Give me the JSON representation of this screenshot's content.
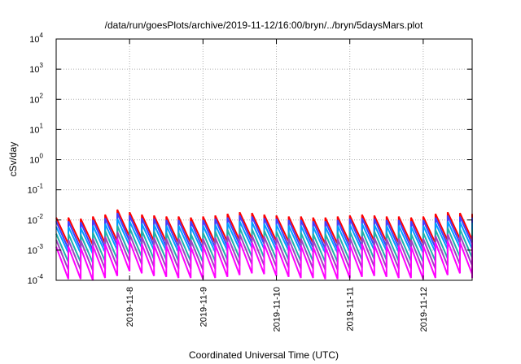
{
  "chart_data": {
    "type": "line",
    "title": "/data/run/goesPlots/archive/2019-11-12/16:00/bryn/../bryn/5daysMars.plot",
    "xlabel": "Coordinated Universal Time (UTC)",
    "ylabel": "cSv/day",
    "yscale": "log",
    "ylim": [
      0.0001,
      10000
    ],
    "y_ticks": [
      {
        "base": "10",
        "exp": "-4",
        "value": 0.0001
      },
      {
        "base": "10",
        "exp": "-3",
        "value": 0.001
      },
      {
        "base": "10",
        "exp": "-2",
        "value": 0.01
      },
      {
        "base": "10",
        "exp": "-1",
        "value": 0.1
      },
      {
        "base": "10",
        "exp": "0",
        "value": 1
      },
      {
        "base": "10",
        "exp": "1",
        "value": 10
      },
      {
        "base": "10",
        "exp": "2",
        "value": 100
      },
      {
        "base": "10",
        "exp": "3",
        "value": 1000
      },
      {
        "base": "10",
        "exp": "4",
        "value": 10000
      }
    ],
    "xlim": [
      "2019-11-07 00:00",
      "2019-11-12 16:00"
    ],
    "x_ticks": [
      {
        "label": "2019-11-8",
        "date": "2019-11-08"
      },
      {
        "label": "2019-11-9",
        "date": "2019-11-09"
      },
      {
        "label": "2019-11-10",
        "date": "2019-11-10"
      },
      {
        "label": "2019-11-11",
        "date": "2019-11-11"
      },
      {
        "label": "2019-11-12",
        "date": "2019-11-12"
      }
    ],
    "grid": true,
    "sawtooth_period_hours": 4,
    "series": [
      {
        "color": "#ff0000",
        "peak_values": [
          0.012,
          0.012,
          0.011,
          0.013,
          0.015,
          0.022,
          0.018,
          0.015,
          0.014,
          0.013,
          0.013,
          0.012,
          0.013,
          0.014,
          0.016,
          0.018,
          0.017,
          0.015,
          0.014,
          0.013,
          0.013,
          0.012,
          0.012,
          0.013,
          0.014,
          0.015,
          0.014,
          0.013,
          0.013,
          0.012,
          0.013,
          0.016,
          0.018,
          0.017,
          0.015,
          0.014,
          0.013,
          0.013,
          0.014,
          0.016,
          0.016,
          0.015,
          0.014,
          0.013
        ],
        "trough_values": [
          0.0016,
          0.0016,
          0.0015,
          0.0017,
          0.002,
          0.0028,
          0.0024,
          0.002,
          0.0019,
          0.0017,
          0.0017,
          0.0016,
          0.0017,
          0.0019,
          0.0021,
          0.0024,
          0.0022,
          0.002,
          0.0019,
          0.0017,
          0.0017,
          0.0016,
          0.0016,
          0.0017,
          0.0019,
          0.002,
          0.0019,
          0.0017,
          0.0017,
          0.0016,
          0.0017,
          0.0021,
          0.0024,
          0.0022,
          0.002,
          0.0019,
          0.0017,
          0.0017,
          0.0019,
          0.0021,
          0.0021,
          0.002,
          0.0019,
          0.0017
        ]
      },
      {
        "color": "#4040ff",
        "peak_values": [
          0.009,
          0.009,
          0.0085,
          0.01,
          0.0115,
          0.017,
          0.014,
          0.0115,
          0.011,
          0.01,
          0.01,
          0.009,
          0.01,
          0.011,
          0.012,
          0.014,
          0.013,
          0.0115,
          0.011,
          0.01,
          0.01,
          0.009,
          0.009,
          0.01,
          0.011,
          0.0115,
          0.011,
          0.01,
          0.01,
          0.009,
          0.01,
          0.012,
          0.014,
          0.013,
          0.0115,
          0.011,
          0.01,
          0.01,
          0.011,
          0.012,
          0.012,
          0.0115,
          0.011,
          0.01
        ],
        "trough_values": [
          0.0011,
          0.0011,
          0.001,
          0.0012,
          0.0014,
          0.002,
          0.0017,
          0.0014,
          0.0013,
          0.0012,
          0.0012,
          0.0011,
          0.0012,
          0.0013,
          0.0015,
          0.0017,
          0.0016,
          0.0014,
          0.0013,
          0.0012,
          0.0012,
          0.0011,
          0.0011,
          0.0012,
          0.0013,
          0.0014,
          0.0013,
          0.0012,
          0.0012,
          0.0011,
          0.0012,
          0.0015,
          0.0017,
          0.0016,
          0.0014,
          0.0013,
          0.0012,
          0.0012,
          0.0013,
          0.0015,
          0.0015,
          0.0014,
          0.0013,
          0.0012
        ]
      },
      {
        "color": "#00a0ff",
        "peak_values": [
          0.006,
          0.006,
          0.0055,
          0.0065,
          0.0075,
          0.011,
          0.009,
          0.0075,
          0.007,
          0.0065,
          0.0065,
          0.006,
          0.0065,
          0.007,
          0.008,
          0.009,
          0.0085,
          0.0075,
          0.007,
          0.0065,
          0.0065,
          0.006,
          0.006,
          0.0065,
          0.007,
          0.0075,
          0.007,
          0.0065,
          0.0065,
          0.006,
          0.0065,
          0.008,
          0.009,
          0.0085,
          0.0075,
          0.007,
          0.0065,
          0.0065,
          0.007,
          0.008,
          0.008,
          0.0075,
          0.007,
          0.0065
        ],
        "trough_values": [
          0.0008,
          0.0008,
          0.00075,
          0.00085,
          0.001,
          0.0014,
          0.0012,
          0.001,
          0.00095,
          0.00085,
          0.00085,
          0.0008,
          0.00085,
          0.00095,
          0.00105,
          0.0012,
          0.0011,
          0.001,
          0.00095,
          0.00085,
          0.00085,
          0.0008,
          0.0008,
          0.00085,
          0.00095,
          0.001,
          0.00095,
          0.00085,
          0.00085,
          0.0008,
          0.00085,
          0.00105,
          0.0012,
          0.0011,
          0.001,
          0.00095,
          0.00085,
          0.00085,
          0.00095,
          0.00105,
          0.00105,
          0.001,
          0.00095,
          0.00085
        ]
      },
      {
        "color": "#20b2aa",
        "peak_values": [
          0.0035,
          0.0035,
          0.0033,
          0.0038,
          0.0045,
          0.0065,
          0.0055,
          0.0045,
          0.0042,
          0.0038,
          0.0038,
          0.0035,
          0.0038,
          0.0042,
          0.0048,
          0.0055,
          0.005,
          0.0045,
          0.0042,
          0.0038,
          0.0038,
          0.0035,
          0.0035,
          0.0038,
          0.0042,
          0.0045,
          0.0042,
          0.0038,
          0.0038,
          0.0035,
          0.0038,
          0.0048,
          0.0055,
          0.005,
          0.0045,
          0.0042,
          0.0038,
          0.0038,
          0.0042,
          0.0048,
          0.0048,
          0.0045,
          0.0042,
          0.0038
        ],
        "trough_values": [
          0.0004,
          0.0004,
          0.00038,
          0.00043,
          0.0005,
          0.0007,
          0.0006,
          0.0005,
          0.00047,
          0.00043,
          0.00043,
          0.0004,
          0.00043,
          0.00047,
          0.00053,
          0.0006,
          0.00056,
          0.0005,
          0.00047,
          0.00043,
          0.00043,
          0.0004,
          0.0004,
          0.00043,
          0.00047,
          0.0005,
          0.00047,
          0.00043,
          0.00043,
          0.0004,
          0.00043,
          0.00053,
          0.0006,
          0.00056,
          0.0005,
          0.00047,
          0.00043,
          0.00043,
          0.00047,
          0.00053,
          0.00053,
          0.0005,
          0.00047,
          0.00043
        ]
      },
      {
        "color": "#a040c0",
        "peak_values": [
          0.0022,
          0.0022,
          0.0021,
          0.0024,
          0.0028,
          0.004,
          0.0034,
          0.0028,
          0.0026,
          0.0024,
          0.0024,
          0.0022,
          0.0024,
          0.0026,
          0.003,
          0.0034,
          0.0031,
          0.0028,
          0.0026,
          0.0024,
          0.0024,
          0.0022,
          0.0022,
          0.0024,
          0.0026,
          0.0028,
          0.0026,
          0.0024,
          0.0024,
          0.0022,
          0.0024,
          0.003,
          0.0034,
          0.0031,
          0.0028,
          0.0026,
          0.0024,
          0.0024,
          0.0026,
          0.003,
          0.003,
          0.0028,
          0.0026,
          0.0024
        ],
        "trough_values": [
          0.00022,
          0.00022,
          0.00021,
          0.00024,
          0.00028,
          0.0004,
          0.00034,
          0.00028,
          0.00026,
          0.00024,
          0.00024,
          0.00022,
          0.00024,
          0.00026,
          0.0003,
          0.00034,
          0.00031,
          0.00028,
          0.00026,
          0.00024,
          0.00024,
          0.00022,
          0.00022,
          0.00024,
          0.00026,
          0.00028,
          0.00026,
          0.00024,
          0.00024,
          0.00022,
          0.00024,
          0.0003,
          0.00034,
          0.00031,
          0.00028,
          0.00026,
          0.00024,
          0.00024,
          0.00026,
          0.0003,
          0.0003,
          0.00028,
          0.00026,
          0.00024
        ]
      },
      {
        "color": "#ff00ff",
        "peak_values": [
          0.0013,
          0.0013,
          0.0012,
          0.0014,
          0.0016,
          0.0024,
          0.002,
          0.0016,
          0.0015,
          0.0014,
          0.0014,
          0.0013,
          0.0014,
          0.0015,
          0.0018,
          0.002,
          0.0018,
          0.0016,
          0.0015,
          0.0014,
          0.0014,
          0.0013,
          0.0013,
          0.0014,
          0.0015,
          0.0016,
          0.0015,
          0.0014,
          0.0014,
          0.0013,
          0.0014,
          0.0018,
          0.002,
          0.0018,
          0.0016,
          0.0015,
          0.0014,
          0.0014,
          0.0015,
          0.0018,
          0.0018,
          0.0016,
          0.0015,
          0.0014
        ],
        "trough_values": [
          0.00011,
          0.00011,
          0.0001,
          0.00012,
          0.00014,
          0.0002,
          0.00017,
          0.00014,
          0.00013,
          0.00012,
          0.00012,
          0.00011,
          0.00012,
          0.00013,
          0.00015,
          0.00017,
          0.00016,
          0.00014,
          0.00013,
          0.00012,
          0.00012,
          0.00011,
          0.00011,
          0.00012,
          0.00013,
          0.00014,
          0.00013,
          0.00012,
          0.00012,
          0.00011,
          0.00012,
          0.00015,
          0.00017,
          0.00016,
          0.00014,
          0.00013,
          0.00012,
          0.00012,
          0.00013,
          0.00015,
          0.00015,
          0.00014,
          0.00013,
          0.00012
        ]
      }
    ]
  }
}
